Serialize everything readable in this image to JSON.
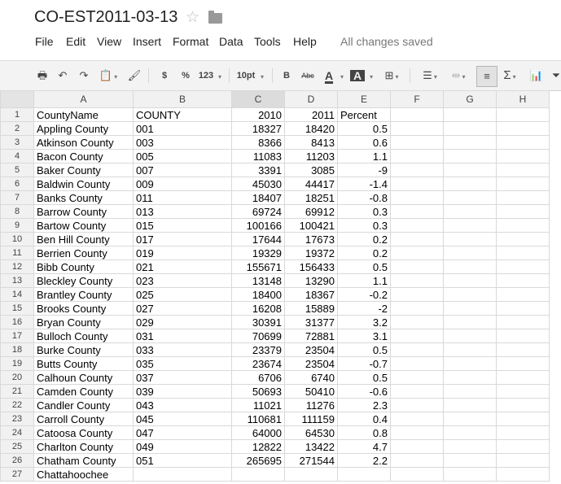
{
  "doc": {
    "title": "CO-EST2011-03-13"
  },
  "menu": [
    "File",
    "Edit",
    "View",
    "Insert",
    "Format",
    "Data",
    "Tools",
    "Help"
  ],
  "status": "All changes saved",
  "toolbar": {
    "currency": "$",
    "percent": "%",
    "more_formats": "123",
    "font_size": "10pt",
    "bold": "B",
    "strike": "Abc",
    "text_color": "A",
    "fill_color": "A",
    "sum": "Σ"
  },
  "columns": [
    "A",
    "B",
    "C",
    "D",
    "E",
    "F",
    "G",
    "H"
  ],
  "rows": [
    [
      "1",
      "CountyName",
      "COUNTY",
      "2010",
      "2011",
      "Percent"
    ],
    [
      "2",
      "Appling County",
      "001",
      "18327",
      "18420",
      "0.5"
    ],
    [
      "3",
      "Atkinson County",
      "003",
      "8366",
      "8413",
      "0.6"
    ],
    [
      "4",
      "Bacon County",
      "005",
      "11083",
      "11203",
      "1.1"
    ],
    [
      "5",
      "Baker County",
      "007",
      "3391",
      "3085",
      "-9"
    ],
    [
      "6",
      "Baldwin County",
      "009",
      "45030",
      "44417",
      "-1.4"
    ],
    [
      "7",
      "Banks County",
      "011",
      "18407",
      "18251",
      "-0.8"
    ],
    [
      "8",
      "Barrow County",
      "013",
      "69724",
      "69912",
      "0.3"
    ],
    [
      "9",
      "Bartow County",
      "015",
      "100166",
      "100421",
      "0.3"
    ],
    [
      "10",
      "Ben Hill County",
      "017",
      "17644",
      "17673",
      "0.2"
    ],
    [
      "11",
      "Berrien County",
      "019",
      "19329",
      "19372",
      "0.2"
    ],
    [
      "12",
      "Bibb County",
      "021",
      "155671",
      "156433",
      "0.5"
    ],
    [
      "13",
      "Bleckley County",
      "023",
      "13148",
      "13290",
      "1.1"
    ],
    [
      "14",
      "Brantley County",
      "025",
      "18400",
      "18367",
      "-0.2"
    ],
    [
      "15",
      "Brooks County",
      "027",
      "16208",
      "15889",
      "-2"
    ],
    [
      "16",
      "Bryan County",
      "029",
      "30391",
      "31377",
      "3.2"
    ],
    [
      "17",
      "Bulloch County",
      "031",
      "70699",
      "72881",
      "3.1"
    ],
    [
      "18",
      "Burke County",
      "033",
      "23379",
      "23504",
      "0.5"
    ],
    [
      "19",
      "Butts County",
      "035",
      "23674",
      "23504",
      "-0.7"
    ],
    [
      "20",
      "Calhoun County",
      "037",
      "6706",
      "6740",
      "0.5"
    ],
    [
      "21",
      "Camden County",
      "039",
      "50693",
      "50410",
      "-0.6"
    ],
    [
      "22",
      "Candler County",
      "043",
      "11021",
      "11276",
      "2.3"
    ],
    [
      "23",
      "Carroll County",
      "045",
      "110681",
      "111159",
      "0.4"
    ],
    [
      "24",
      "Catoosa County",
      "047",
      "64000",
      "64530",
      "0.8"
    ],
    [
      "25",
      "Charlton County",
      "049",
      "12822",
      "13422",
      "4.7"
    ],
    [
      "26",
      "Chatham County",
      "051",
      "265695",
      "271544",
      "2.2"
    ],
    [
      "27",
      "Chattahoochee",
      "",
      "",
      "",
      ""
    ]
  ]
}
